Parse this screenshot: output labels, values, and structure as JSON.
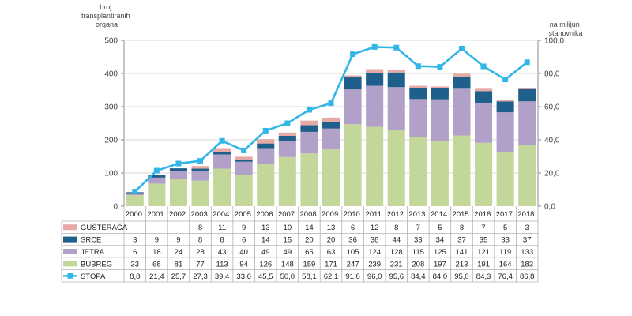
{
  "chart_data": {
    "type": "bar",
    "stacked": true,
    "categories": [
      "2000.",
      "2001.",
      "2002.",
      "2003.",
      "2004.",
      "2005.",
      "2006.",
      "2007.",
      "2008.",
      "2009.",
      "2010.",
      "2011.",
      "2012.",
      "2013.",
      "2014.",
      "2015.",
      "2016.",
      "2017.",
      "2018."
    ],
    "ylabel_left": "broj transplantiranih organa",
    "ylabel_right": "na milijun stanovnika",
    "ylim_left": [
      0,
      500
    ],
    "yticks_left": [
      "0",
      "100",
      "200",
      "300",
      "400",
      "500"
    ],
    "ylim_right": [
      0,
      100
    ],
    "yticks_right": [
      "0,0",
      "20,0",
      "40,0",
      "60,0",
      "80,0",
      "100,0"
    ],
    "series": [
      {
        "name": "BUBREG",
        "color": "#c4d79b",
        "values": [
          33,
          68,
          81,
          77,
          113,
          94,
          126,
          148,
          159,
          171,
          247,
          239,
          231,
          208,
          197,
          213,
          191,
          164,
          183
        ]
      },
      {
        "name": "JETRA",
        "color": "#b1a0c7",
        "values": [
          6,
          18,
          24,
          28,
          43,
          40,
          49,
          49,
          65,
          63,
          105,
          124,
          128,
          115,
          125,
          141,
          121,
          119,
          133
        ]
      },
      {
        "name": "SRCE",
        "color": "#1f5f8b",
        "values": [
          3,
          9,
          9,
          8,
          8,
          6,
          14,
          15,
          20,
          20,
          36,
          38,
          44,
          33,
          34,
          37,
          35,
          33,
          37
        ]
      },
      {
        "name": "GUŠTERAČA",
        "color": "#e6a9a5",
        "values": [
          null,
          null,
          null,
          8,
          11,
          9,
          13,
          10,
          14,
          13,
          6,
          12,
          8,
          7,
          5,
          8,
          7,
          5,
          3
        ]
      }
    ],
    "line_series": {
      "name": "STOPA",
      "color": "#31b6e7",
      "axis": "right",
      "values": [
        8.8,
        21.4,
        25.7,
        27.3,
        39.4,
        33.6,
        45.5,
        50.0,
        58.1,
        62.1,
        91.6,
        96.0,
        95.6,
        84.4,
        84.0,
        95.0,
        84.3,
        76.4,
        86.8
      ]
    },
    "table_rows": [
      {
        "name": "GUŠTERAČA",
        "cells": [
          "",
          "",
          "",
          "8",
          "11",
          "9",
          "13",
          "10",
          "14",
          "13",
          "6",
          "12",
          "8",
          "7",
          "5",
          "8",
          "7",
          "5",
          "3"
        ]
      },
      {
        "name": "SRCE",
        "cells": [
          "3",
          "9",
          "9",
          "8",
          "8",
          "6",
          "14",
          "15",
          "20",
          "20",
          "36",
          "38",
          "44",
          "33",
          "34",
          "37",
          "35",
          "33",
          "37"
        ]
      },
      {
        "name": "JETRA",
        "cells": [
          "6",
          "18",
          "24",
          "28",
          "43",
          "40",
          "49",
          "49",
          "65",
          "63",
          "105",
          "124",
          "128",
          "115",
          "125",
          "141",
          "121",
          "119",
          "133"
        ]
      },
      {
        "name": "BUBREG",
        "cells": [
          "33",
          "68",
          "81",
          "77",
          "113",
          "94",
          "126",
          "148",
          "159",
          "171",
          "247",
          "239",
          "231",
          "208",
          "197",
          "213",
          "191",
          "164",
          "183"
        ]
      },
      {
        "name": "STOPA",
        "cells": [
          "8,8",
          "21,4",
          "25,7",
          "27,3",
          "39,4",
          "33,6",
          "45,5",
          "50,0",
          "58,1",
          "62,1",
          "91,6",
          "96,0",
          "95,6",
          "84,4",
          "84,0",
          "95,0",
          "84,3",
          "76,4",
          "86,8"
        ]
      }
    ]
  }
}
